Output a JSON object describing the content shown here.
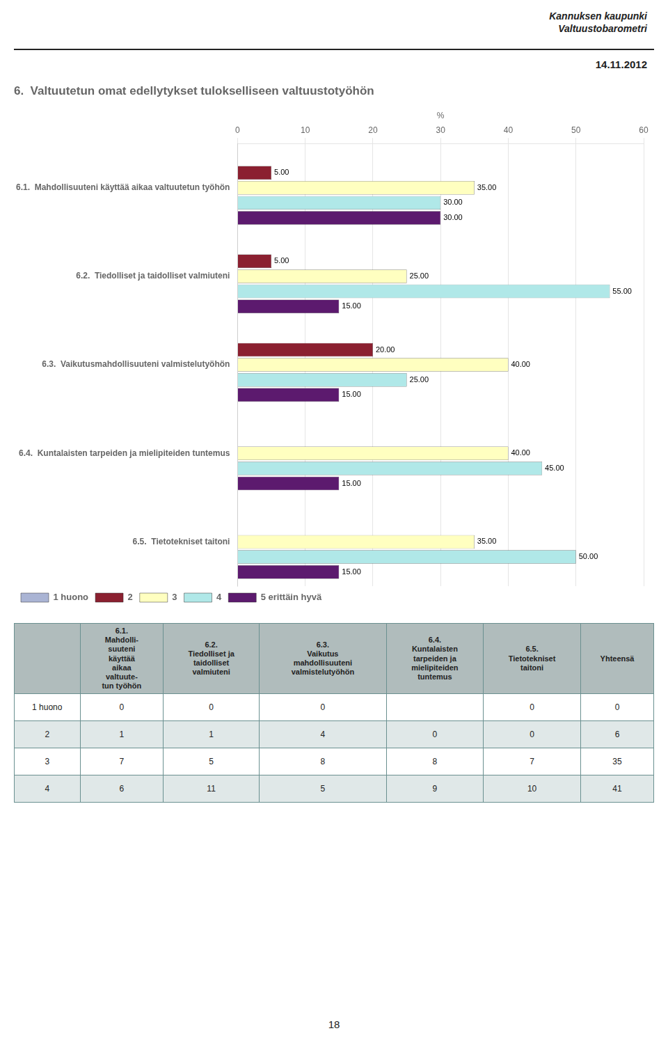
{
  "chart_data": {
    "type": "bar",
    "orientation": "horizontal",
    "title": "6.  Valtuutetun omat edellytykset tulokselliseen valtuustotyöhön",
    "annotations": [
      "Kannuksen kaupunki\nValtuustobarometri",
      "14.11.2012",
      "18"
    ],
    "categories": [
      "6.1.  Mahdollisuuteni käyttää aikaa valtuutetun työhön",
      "6.2.  Tiedolliset ja taidolliset valmiuteni",
      "6.3.  Vaikutusmahdollisuuteni valmistelutyöhön",
      "6.4.  Kuntalaisten tarpeiden ja mielipiteiden tuntemus",
      "6.5.  Tietotekniset taitoni"
    ],
    "series": [
      {
        "name": "1 huono",
        "color": "#aab4d4",
        "values": [
          0,
          0,
          0,
          0,
          0
        ],
        "value_labels": [
          null,
          null,
          null,
          null,
          null
        ]
      },
      {
        "name": "2",
        "color": "#8b2030",
        "values": [
          5.0,
          5.0,
          20.0,
          0,
          0
        ],
        "value_labels": [
          "5.00",
          "5.00",
          "20.00",
          null,
          null
        ]
      },
      {
        "name": "3",
        "color": "#ffffc0",
        "values": [
          35.0,
          25.0,
          40.0,
          40.0,
          35.0
        ],
        "value_labels": [
          "35.00",
          "25.00",
          "40.00",
          "40.00",
          "35.00"
        ]
      },
      {
        "name": "4",
        "color": "#b0e8e8",
        "values": [
          30.0,
          55.0,
          25.0,
          45.0,
          50.0
        ],
        "value_labels": [
          "30.00",
          "55.00",
          "25.00",
          "45.00",
          "50.00"
        ]
      },
      {
        "name": "5 erittäin hyvä",
        "color": "#5c1a6e",
        "values": [
          30.0,
          15.0,
          15.0,
          15.0,
          15.0
        ],
        "value_labels": [
          "30.00",
          "15.00",
          "15.00",
          "15.00",
          "15.00"
        ]
      }
    ],
    "xlabel": "%",
    "xlim": [
      0,
      60
    ],
    "xticks": [
      0,
      10,
      20,
      30,
      40,
      50,
      60
    ],
    "grid": true,
    "legend": "lower left",
    "data_labels": true,
    "table": {
      "columns": [
        "6.1.\nMahdolli-\nsuuteni\nkäyttää\naikaa\nvaltuute-\ntun työhön",
        "6.2.\nTiedolliset ja\ntaidolliset\nvalmiuteni",
        "6.3.\nVaikutus\nmahdollisuuteni\nvalmistelutyöhön",
        "6.4.\nKuntalaisten\ntarpeiden ja\nmielipiteiden\ntuntemus",
        "6.5.\nTietotekniset\ntaitoni",
        "Yhteensä"
      ],
      "rows": [
        "1 huono",
        "2",
        "3",
        "4"
      ],
      "cells": [
        [
          0,
          0,
          0,
          null,
          0,
          0
        ],
        [
          1,
          1,
          4,
          0,
          0,
          6
        ],
        [
          7,
          5,
          8,
          8,
          7,
          35
        ],
        [
          6,
          11,
          5,
          9,
          10,
          41
        ]
      ]
    }
  }
}
